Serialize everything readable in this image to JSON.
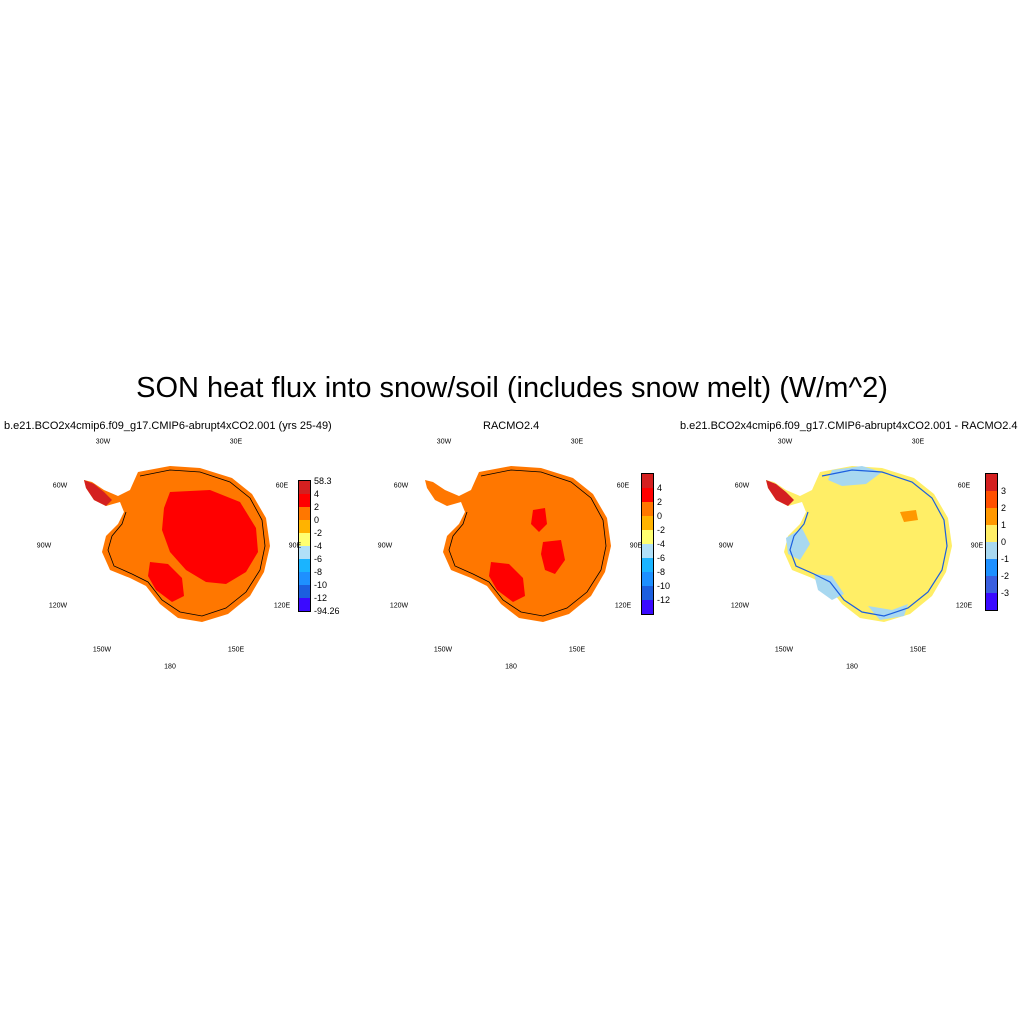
{
  "title": "SON heat flux into snow/soil (includes snow melt) (W/m^2)",
  "panels": [
    {
      "title": "b.e21.BCO2x4cmip6.f09_g17.CMIP6-abrupt4xCO2.001 (yrs 25-49)",
      "lon_labels": [
        "30W",
        "30E",
        "60W",
        "60E",
        "90W",
        "90E",
        "120W",
        "120E",
        "150W",
        "150E",
        "180"
      ],
      "base_color": "#ff7700",
      "colorbar": {
        "colors": [
          "#d42020",
          "#ff0000",
          "#ff7700",
          "#ffb300",
          "#ffff70",
          "#b0e0f8",
          "#1ab4ff",
          "#1e90ff",
          "#1c5fdf",
          "#3a0aff"
        ],
        "labels": [
          "58.3",
          "4",
          "2",
          "0",
          "-2",
          "-4",
          "-6",
          "-8",
          "-10",
          "-12",
          "-94.26"
        ]
      }
    },
    {
      "title": "RACMO2.4",
      "lon_labels": [
        "30W",
        "30E",
        "60W",
        "60E",
        "90W",
        "90E",
        "120W",
        "120E",
        "150W",
        "150E",
        "180"
      ],
      "base_color": "#ff7700",
      "colorbar": {
        "colors": [
          "#d42020",
          "#ff0000",
          "#ff7700",
          "#ffb300",
          "#ffff70",
          "#b0e0f8",
          "#1ab4ff",
          "#1e90ff",
          "#1c5fdf",
          "#3a0aff"
        ],
        "labels": [
          "4",
          "2",
          "0",
          "-2",
          "-4",
          "-6",
          "-8",
          "-10",
          "-12"
        ]
      }
    },
    {
      "title": "b.e21.BCO2x4cmip6.f09_g17.CMIP6-abrupt4xCO2.001 - RACMO2.4",
      "lon_labels": [
        "30W",
        "30E",
        "60W",
        "60E",
        "90W",
        "90E",
        "120W",
        "120E",
        "150W",
        "150E",
        "180"
      ],
      "base_color": "#ffee66",
      "colorbar": {
        "colors": [
          "#d42020",
          "#ff5000",
          "#ff9800",
          "#ffee66",
          "#a8d8f0",
          "#1e90ff",
          "#3a5fe0",
          "#3a0aff"
        ],
        "labels": [
          "3",
          "2",
          "1",
          "0",
          "-1",
          "-2",
          "-3"
        ]
      }
    }
  ]
}
